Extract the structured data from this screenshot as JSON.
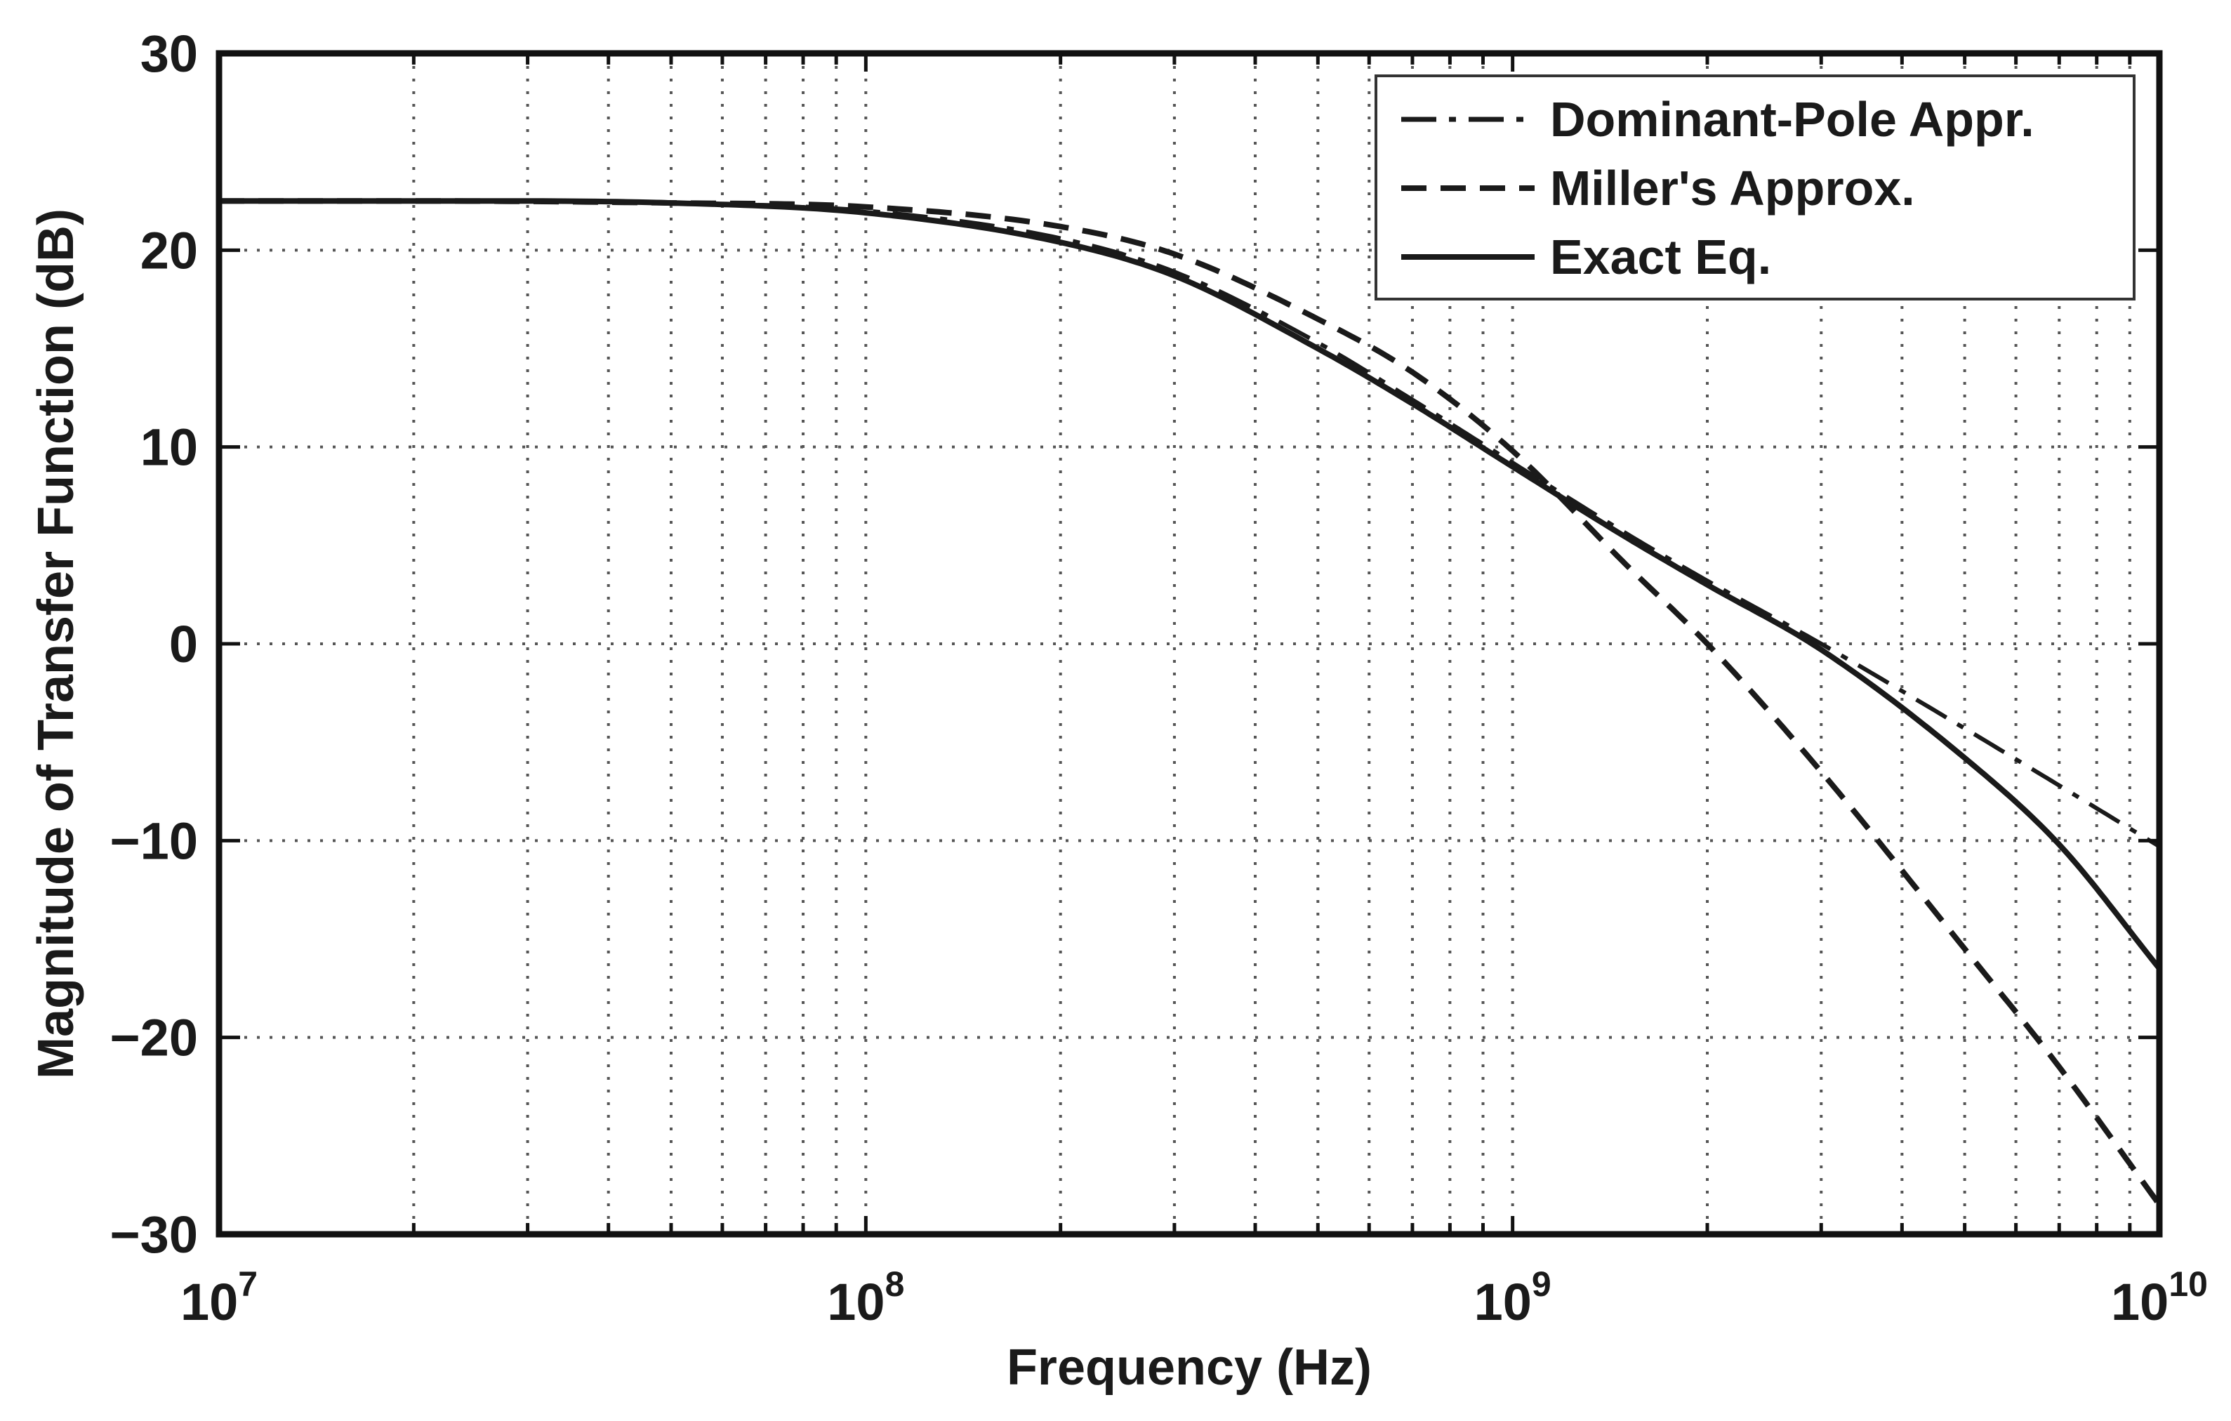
{
  "chart_data": {
    "type": "line",
    "title": "",
    "xlabel": "Frequency (Hz)",
    "ylabel": "Magnitude of Transfer Function (dB)",
    "xscale": "log",
    "xlim": [
      10000000,
      10000000000
    ],
    "ylim": [
      -30,
      30
    ],
    "x_ticks": [
      {
        "base": "10",
        "exp": "7",
        "value": 10000000
      },
      {
        "base": "10",
        "exp": "8",
        "value": 100000000
      },
      {
        "base": "10",
        "exp": "9",
        "value": 1000000000
      },
      {
        "base": "10",
        "exp": "10",
        "value": 10000000000
      }
    ],
    "y_ticks": [
      "30",
      "20",
      "10",
      "0",
      "−10",
      "−20",
      "−30"
    ],
    "y_tick_values": [
      30,
      20,
      10,
      0,
      -10,
      -20,
      -30
    ],
    "grid": true,
    "grid_style": "dotted",
    "legend": "top-right",
    "x": [
      10000000,
      20000000,
      50000000,
      100000000,
      200000000,
      300000000,
      500000000,
      700000000,
      1000000000,
      1500000000,
      2000000000,
      3000000000,
      5000000000,
      7000000000,
      10000000000
    ],
    "series": [
      {
        "name": "Dominant-Pole Appr.",
        "style": "dashdot",
        "values": [
          22.5,
          22.5,
          22.4,
          22.0,
          20.6,
          18.9,
          15.3,
          12.4,
          9.2,
          5.6,
          3.2,
          0.0,
          -4.3,
          -7.2,
          -10.3
        ]
      },
      {
        "name": "Miller's Approx.",
        "style": "dashed",
        "values": [
          22.5,
          22.5,
          22.4,
          22.2,
          21.2,
          19.8,
          16.5,
          13.8,
          9.8,
          4.0,
          0.0,
          -6.5,
          -15.5,
          -21.5,
          -28.5
        ]
      },
      {
        "name": "Exact Eq.",
        "style": "solid",
        "values": [
          22.5,
          22.5,
          22.4,
          21.9,
          20.4,
          18.7,
          15.0,
          12.2,
          9.0,
          5.4,
          3.0,
          -0.3,
          -5.8,
          -10.2,
          -16.5
        ]
      }
    ],
    "colors": {
      "axis": "#111111",
      "grid": "#555555",
      "series": "#1a1a1a"
    }
  }
}
